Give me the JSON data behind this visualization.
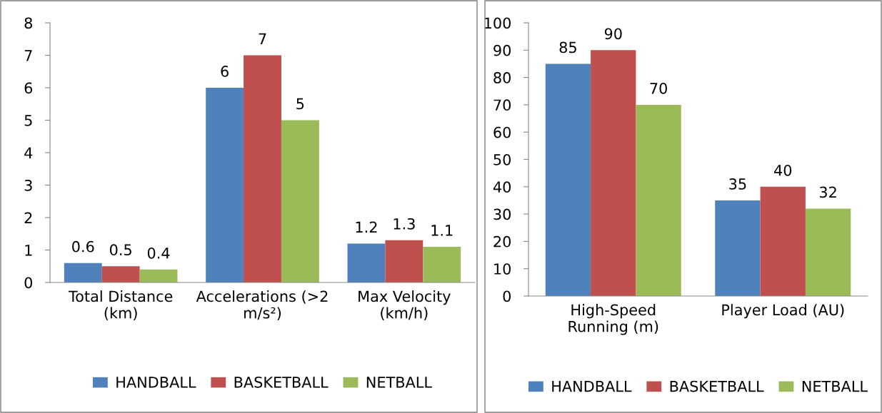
{
  "chart_data": [
    {
      "type": "bar",
      "categories": [
        "Total Distance (km)",
        "Accelerations (>2 m/s²)",
        "Max Velocity (km/h)"
      ],
      "series": [
        {
          "name": "HANDBALL",
          "color": "#4f81bd",
          "values": [
            0.6,
            6,
            1.2
          ]
        },
        {
          "name": "BASKETBALL",
          "color": "#c0504d",
          "values": [
            0.5,
            7,
            1.3
          ]
        },
        {
          "name": "NETBALL",
          "color": "#9bbb59",
          "values": [
            0.4,
            5,
            1.1
          ]
        }
      ],
      "ylim": [
        0,
        8
      ],
      "yticks": [
        0,
        1,
        2,
        3,
        4,
        5,
        6,
        7,
        8
      ],
      "data_labels": true,
      "legend": "bottom",
      "grid": false
    },
    {
      "type": "bar",
      "categories": [
        "High-Speed Running (m)",
        "Player Load (AU)"
      ],
      "series": [
        {
          "name": "HANDBALL",
          "color": "#4f81bd",
          "values": [
            85,
            35
          ]
        },
        {
          "name": "BASKETBALL",
          "color": "#c0504d",
          "values": [
            90,
            40
          ]
        },
        {
          "name": "NETBALL",
          "color": "#9bbb59",
          "values": [
            70,
            32
          ]
        }
      ],
      "ylim": [
        0,
        100
      ],
      "yticks": [
        0,
        10,
        20,
        30,
        40,
        50,
        60,
        70,
        80,
        90,
        100
      ],
      "data_labels": true,
      "legend": "bottom",
      "grid": false
    }
  ]
}
